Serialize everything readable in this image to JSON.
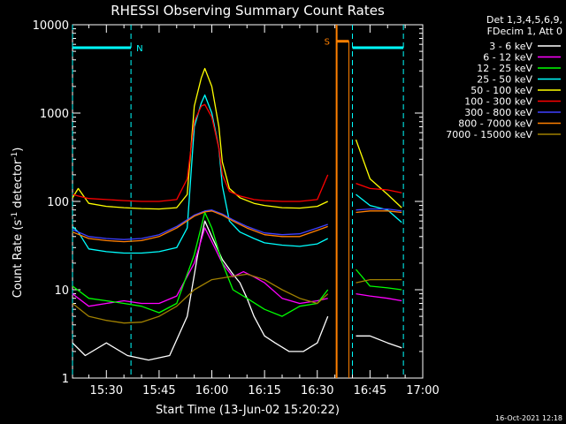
{
  "chart_data": {
    "type": "line",
    "title": "RHESSI Observing Summary Count Rates",
    "xlabel": "Start Time (13-Jun-02 15:20:22)",
    "ylabel_main": "Count Rate (s",
    "ylabel_sup1": "-1",
    "ylabel_mid": " detector",
    "ylabel_sup2": "-1",
    "ylabel_end": ")",
    "y_scale": "log",
    "ylim": [
      1,
      10000
    ],
    "xlim": [
      "15:20:22",
      "17:00:00"
    ],
    "x_ticks": [
      "15:30",
      "15:45",
      "16:00",
      "16:15",
      "16:30",
      "16:45",
      "17:00"
    ],
    "y_ticks": [
      "1",
      "10",
      "100",
      "1000",
      "10000"
    ],
    "grid": false,
    "legend_position": "right",
    "legend_header": [
      "Det 1,3,4,5,6,9,",
      "FDecim 1, Att 0"
    ],
    "footer_date": "16-Oct-2021 12:18",
    "flags": {
      "night_label": "N",
      "saa_label": "S",
      "night_color": "#00ffff",
      "saa_color": "#ff8000",
      "night_intervals": [
        [
          "15:20:22",
          "15:37:00"
        ],
        [
          "16:40:00",
          "16:54:30"
        ]
      ],
      "night_level": 5500,
      "saa_interval": [
        "16:35:30",
        "16:39:00"
      ],
      "saa_level": 6500
    },
    "gap": [
      "16:33:30",
      "16:41:00"
    ],
    "series": [
      {
        "name": "3 - 6 keV",
        "color": "#ffffff",
        "points": [
          [
            "15:20:22",
            2.5
          ],
          [
            "15:24",
            1.8
          ],
          [
            "15:30",
            2.5
          ],
          [
            "15:36",
            1.8
          ],
          [
            "15:42",
            1.6
          ],
          [
            "15:48",
            1.8
          ],
          [
            "15:53",
            5
          ],
          [
            "15:56",
            25
          ],
          [
            "15:58",
            60
          ],
          [
            "16:00",
            40
          ],
          [
            "16:03",
            22
          ],
          [
            "16:06",
            15
          ],
          [
            "16:08",
            12
          ],
          [
            "16:10",
            8
          ],
          [
            "16:12",
            5
          ],
          [
            "16:15",
            3
          ],
          [
            "16:18",
            2.5
          ],
          [
            "16:22",
            2
          ],
          [
            "16:26",
            2
          ],
          [
            "16:30",
            2.5
          ],
          [
            "16:33",
            5
          ],
          [
            "16:41",
            3
          ],
          [
            "16:45",
            3
          ],
          [
            "16:50",
            2.5
          ],
          [
            "16:54",
            2.2
          ]
        ]
      },
      {
        "name": "6 - 12 keV",
        "color": "#ff00ff",
        "points": [
          [
            "15:20:22",
            9
          ],
          [
            "15:25",
            6.5
          ],
          [
            "15:30",
            7
          ],
          [
            "15:35",
            7.5
          ],
          [
            "15:40",
            7
          ],
          [
            "15:45",
            7
          ],
          [
            "15:50",
            8.5
          ],
          [
            "15:55",
            20
          ],
          [
            "15:58",
            50
          ],
          [
            "16:00",
            35
          ],
          [
            "16:03",
            20
          ],
          [
            "16:06",
            14
          ],
          [
            "16:09",
            16
          ],
          [
            "16:12",
            14
          ],
          [
            "16:15",
            12
          ],
          [
            "16:20",
            8
          ],
          [
            "16:25",
            7
          ],
          [
            "16:30",
            7.5
          ],
          [
            "16:33",
            8
          ],
          [
            "16:41",
            9
          ],
          [
            "16:45",
            8.5
          ],
          [
            "16:50",
            8
          ],
          [
            "16:54",
            7.5
          ]
        ]
      },
      {
        "name": "12 - 25 keV",
        "color": "#00ff00",
        "points": [
          [
            "15:20:22",
            11
          ],
          [
            "15:25",
            8
          ],
          [
            "15:30",
            7.5
          ],
          [
            "15:35",
            7
          ],
          [
            "15:40",
            6.5
          ],
          [
            "15:45",
            5.5
          ],
          [
            "15:50",
            7
          ],
          [
            "15:55",
            25
          ],
          [
            "15:58",
            75
          ],
          [
            "16:00",
            50
          ],
          [
            "16:03",
            20
          ],
          [
            "16:06",
            10
          ],
          [
            "16:10",
            8
          ],
          [
            "16:15",
            6
          ],
          [
            "16:20",
            5
          ],
          [
            "16:25",
            6.5
          ],
          [
            "16:30",
            7
          ],
          [
            "16:33",
            10
          ],
          [
            "16:41",
            17
          ],
          [
            "16:45",
            11
          ],
          [
            "16:50",
            10.5
          ],
          [
            "16:54",
            10
          ]
        ]
      },
      {
        "name": "25 - 50 keV",
        "color": "#00ffff",
        "points": [
          [
            "15:20:22",
            52
          ],
          [
            "15:22",
            45
          ],
          [
            "15:25",
            29
          ],
          [
            "15:30",
            27
          ],
          [
            "15:35",
            26
          ],
          [
            "15:40",
            26
          ],
          [
            "15:45",
            27
          ],
          [
            "15:50",
            30
          ],
          [
            "15:53",
            50
          ],
          [
            "15:55",
            700
          ],
          [
            "15:57",
            1300
          ],
          [
            "15:58",
            1600
          ],
          [
            "16:00",
            1000
          ],
          [
            "16:02",
            400
          ],
          [
            "16:03",
            150
          ],
          [
            "16:05",
            60
          ],
          [
            "16:08",
            45
          ],
          [
            "16:12",
            38
          ],
          [
            "16:15",
            34
          ],
          [
            "16:20",
            32
          ],
          [
            "16:25",
            31
          ],
          [
            "16:30",
            33
          ],
          [
            "16:33",
            38
          ],
          [
            "16:41",
            120
          ],
          [
            "16:45",
            90
          ],
          [
            "16:50",
            80
          ],
          [
            "16:54",
            58
          ]
        ]
      },
      {
        "name": "50 - 100 keV",
        "color": "#ffff00",
        "points": [
          [
            "15:20:22",
            110
          ],
          [
            "15:22",
            140
          ],
          [
            "15:25",
            95
          ],
          [
            "15:30",
            88
          ],
          [
            "15:35",
            85
          ],
          [
            "15:40",
            83
          ],
          [
            "15:45",
            82
          ],
          [
            "15:50",
            85
          ],
          [
            "15:53",
            120
          ],
          [
            "15:55",
            1200
          ],
          [
            "15:57",
            2500
          ],
          [
            "15:58",
            3200
          ],
          [
            "16:00",
            2000
          ],
          [
            "16:02",
            700
          ],
          [
            "16:03",
            280
          ],
          [
            "16:05",
            140
          ],
          [
            "16:08",
            110
          ],
          [
            "16:12",
            95
          ],
          [
            "16:15",
            90
          ],
          [
            "16:20",
            85
          ],
          [
            "16:25",
            84
          ],
          [
            "16:30",
            88
          ],
          [
            "16:33",
            100
          ],
          [
            "16:41",
            500
          ],
          [
            "16:45",
            180
          ],
          [
            "16:50",
            120
          ],
          [
            "16:54",
            85
          ]
        ]
      },
      {
        "name": "100 - 300 keV",
        "color": "#ff0000",
        "points": [
          [
            "15:20:22",
            120
          ],
          [
            "15:22",
            115
          ],
          [
            "15:25",
            108
          ],
          [
            "15:30",
            105
          ],
          [
            "15:35",
            102
          ],
          [
            "15:40",
            100
          ],
          [
            "15:45",
            100
          ],
          [
            "15:50",
            105
          ],
          [
            "15:53",
            180
          ],
          [
            "15:55",
            800
          ],
          [
            "15:57",
            1200
          ],
          [
            "15:58",
            1250
          ],
          [
            "16:00",
            900
          ],
          [
            "16:02",
            400
          ],
          [
            "16:03",
            200
          ],
          [
            "16:05",
            130
          ],
          [
            "16:08",
            115
          ],
          [
            "16:12",
            105
          ],
          [
            "16:15",
            102
          ],
          [
            "16:20",
            100
          ],
          [
            "16:25",
            100
          ],
          [
            "16:30",
            105
          ],
          [
            "16:33",
            200
          ],
          [
            "16:41",
            160
          ],
          [
            "16:45",
            140
          ],
          [
            "16:50",
            135
          ],
          [
            "16:54",
            125
          ]
        ]
      },
      {
        "name": "300 - 800 keV",
        "color": "#4040ff",
        "points": [
          [
            "15:20:22",
            48
          ],
          [
            "15:25",
            40
          ],
          [
            "15:30",
            38
          ],
          [
            "15:35",
            37
          ],
          [
            "15:40",
            38
          ],
          [
            "15:45",
            42
          ],
          [
            "15:50",
            52
          ],
          [
            "15:55",
            70
          ],
          [
            "15:58",
            78
          ],
          [
            "16:00",
            80
          ],
          [
            "16:03",
            72
          ],
          [
            "16:06",
            62
          ],
          [
            "16:10",
            52
          ],
          [
            "16:15",
            44
          ],
          [
            "16:20",
            42
          ],
          [
            "16:25",
            43
          ],
          [
            "16:30",
            50
          ],
          [
            "16:33",
            55
          ],
          [
            "16:41",
            80
          ],
          [
            "16:45",
            82
          ],
          [
            "16:50",
            82
          ],
          [
            "16:54",
            78
          ]
        ]
      },
      {
        "name": "800 - 7000 keV",
        "color": "#ff8000",
        "points": [
          [
            "15:20:22",
            45
          ],
          [
            "15:25",
            38
          ],
          [
            "15:30",
            36
          ],
          [
            "15:35",
            35
          ],
          [
            "15:40",
            36
          ],
          [
            "15:45",
            40
          ],
          [
            "15:50",
            50
          ],
          [
            "15:55",
            68
          ],
          [
            "15:58",
            76
          ],
          [
            "16:00",
            78
          ],
          [
            "16:03",
            70
          ],
          [
            "16:06",
            60
          ],
          [
            "16:10",
            50
          ],
          [
            "16:15",
            42
          ],
          [
            "16:20",
            40
          ],
          [
            "16:25",
            40
          ],
          [
            "16:30",
            47
          ],
          [
            "16:33",
            52
          ],
          [
            "16:41",
            75
          ],
          [
            "16:45",
            78
          ],
          [
            "16:50",
            78
          ],
          [
            "16:54",
            75
          ]
        ]
      },
      {
        "name": "7000 - 15000 keV",
        "color": "#a08000",
        "points": [
          [
            "15:20:22",
            7
          ],
          [
            "15:25",
            5
          ],
          [
            "15:30",
            4.5
          ],
          [
            "15:35",
            4.2
          ],
          [
            "15:40",
            4.3
          ],
          [
            "15:45",
            5
          ],
          [
            "15:50",
            6.5
          ],
          [
            "15:55",
            10
          ],
          [
            "16:00",
            13
          ],
          [
            "16:05",
            14
          ],
          [
            "16:10",
            15
          ],
          [
            "16:15",
            13
          ],
          [
            "16:20",
            10
          ],
          [
            "16:25",
            8
          ],
          [
            "16:30",
            7
          ],
          [
            "16:33",
            9
          ],
          [
            "16:41",
            12
          ],
          [
            "16:45",
            13
          ],
          [
            "16:50",
            13
          ],
          [
            "16:54",
            13
          ]
        ]
      }
    ]
  }
}
